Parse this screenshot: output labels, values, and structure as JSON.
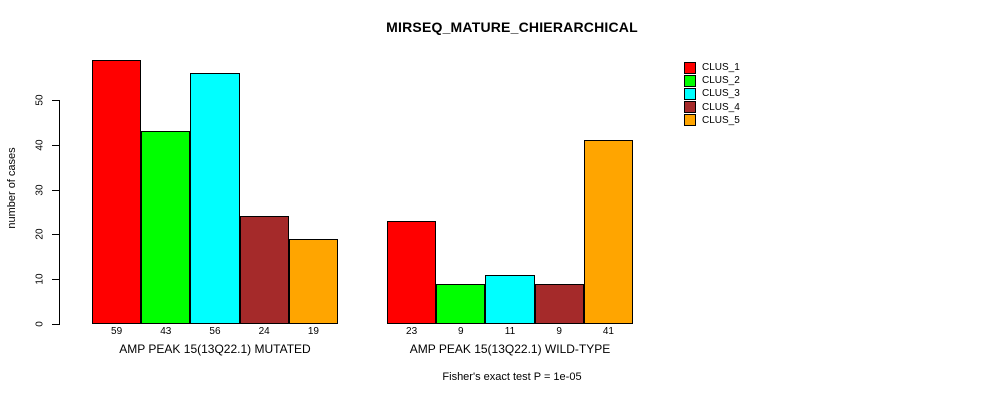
{
  "page": {
    "background": "#FFFFFF"
  },
  "chart_data": {
    "type": "bar",
    "title": "MIRSEQ_MATURE_CHIERARCHICAL",
    "ylabel": "number of cases",
    "xlabel": "",
    "yticks": [
      0,
      10,
      20,
      30,
      40,
      50
    ],
    "ylim": [
      0,
      59
    ],
    "grid": false,
    "legend_position": "right-outside",
    "bar_value_labels": true,
    "categories": [
      "AMP PEAK 15(13Q22.1) MUTATED",
      "AMP PEAK 15(13Q22.1) WILD-TYPE"
    ],
    "series": [
      {
        "name": "CLUS_1",
        "color": "#FF0000",
        "values": [
          59,
          23
        ]
      },
      {
        "name": "CLUS_2",
        "color": "#00FF00",
        "values": [
          43,
          9
        ]
      },
      {
        "name": "CLUS_3",
        "color": "#00FFFF",
        "values": [
          56,
          11
        ]
      },
      {
        "name": "CLUS_4",
        "color": "#A52A2A",
        "values": [
          24,
          9
        ]
      },
      {
        "name": "CLUS_5",
        "color": "#FFA500",
        "values": [
          19,
          41
        ]
      }
    ],
    "annotation": "Fisher's exact test P = 1e-05"
  }
}
